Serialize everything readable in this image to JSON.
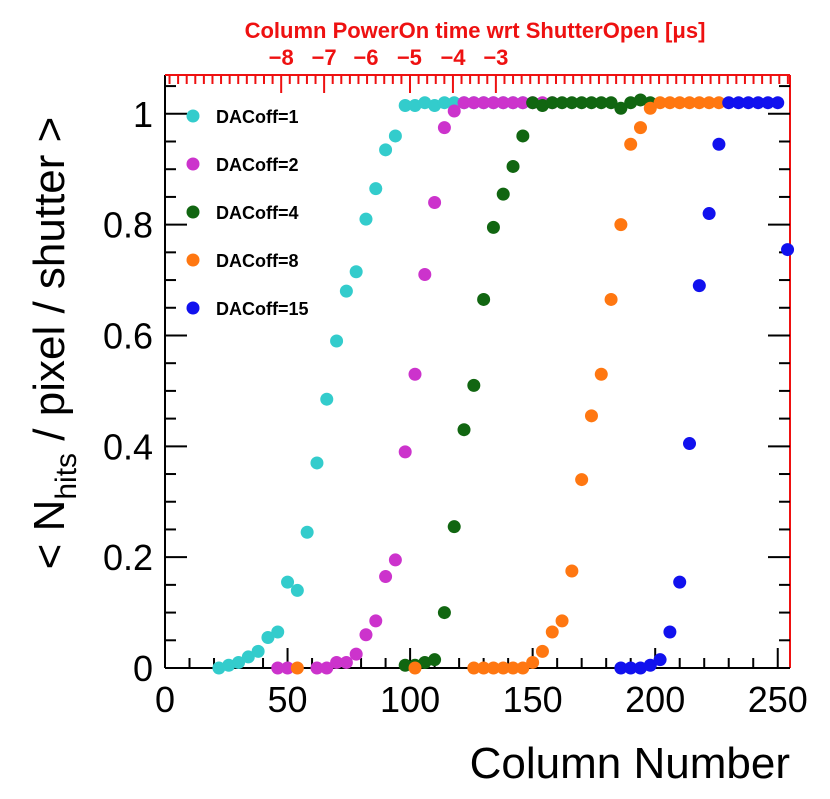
{
  "chart_data": {
    "type": "scatter",
    "xlabel": "Column Number",
    "ylabel_parts": {
      "open": "< N",
      "sub": "hits",
      "rest": " / pixel / shutter >"
    },
    "top_axis_label": "Column PowerOn time wrt ShutterOpen [μs]",
    "xlim": [
      0,
      255
    ],
    "ylim": [
      0,
      1.07
    ],
    "x_ticks": [
      0,
      50,
      100,
      150,
      200,
      250
    ],
    "y_ticks": [
      0,
      0.2,
      0.4,
      0.6,
      0.8,
      1
    ],
    "y_tick_labels": [
      "0",
      "0.2",
      "0.4",
      "0.6",
      "0.8",
      "1"
    ],
    "top_ticks": [
      {
        "label": "−8",
        "x": 47.4
      },
      {
        "label": "−7",
        "x": 64.9
      },
      {
        "label": "−6",
        "x": 82.0
      },
      {
        "label": "−5",
        "x": 99.7
      },
      {
        "label": "−4",
        "x": 117.5
      },
      {
        "label": "−3",
        "x": 135.0
      }
    ],
    "colors": {
      "axis": "#000000",
      "top_axis": "#ee1111"
    },
    "series": [
      {
        "name": "DACoff=1",
        "color": "#33cccc",
        "points": [
          [
            22,
            0.0
          ],
          [
            26,
            0.005
          ],
          [
            30,
            0.01
          ],
          [
            34,
            0.02
          ],
          [
            38,
            0.03
          ],
          [
            42,
            0.055
          ],
          [
            46,
            0.065
          ],
          [
            50,
            0.155
          ],
          [
            54,
            0.14
          ],
          [
            58,
            0.245
          ],
          [
            62,
            0.37
          ],
          [
            66,
            0.485
          ],
          [
            70,
            0.59
          ],
          [
            74,
            0.68
          ],
          [
            78,
            0.715
          ],
          [
            82,
            0.81
          ],
          [
            86,
            0.865
          ],
          [
            90,
            0.935
          ],
          [
            94,
            0.96
          ],
          [
            98,
            1.015
          ],
          [
            102,
            1.015
          ],
          [
            106,
            1.02
          ],
          [
            110,
            1.015
          ],
          [
            114,
            1.02
          ],
          [
            118,
            1.02
          ],
          [
            122,
            1.02
          ],
          [
            126,
            1.02
          ],
          [
            130,
            1.02
          ],
          [
            134,
            1.02
          ],
          [
            138,
            1.02
          ],
          [
            142,
            1.02
          ],
          [
            146,
            1.02
          ]
        ]
      },
      {
        "name": "DACoff=2",
        "color": "#cc33cc",
        "points": [
          [
            46,
            0.0
          ],
          [
            50,
            0.0
          ],
          [
            62,
            0.0
          ],
          [
            66,
            0.0
          ],
          [
            70,
            0.01
          ],
          [
            74,
            0.01
          ],
          [
            78,
            0.025
          ],
          [
            82,
            0.06
          ],
          [
            86,
            0.085
          ],
          [
            90,
            0.165
          ],
          [
            94,
            0.195
          ],
          [
            98,
            0.39
          ],
          [
            102,
            0.53
          ],
          [
            106,
            0.71
          ],
          [
            110,
            0.84
          ],
          [
            114,
            0.975
          ],
          [
            118,
            1.005
          ],
          [
            122,
            1.02
          ],
          [
            126,
            1.02
          ],
          [
            130,
            1.02
          ],
          [
            134,
            1.02
          ],
          [
            138,
            1.02
          ],
          [
            142,
            1.02
          ],
          [
            146,
            1.02
          ],
          [
            150,
            1.02
          ],
          [
            154,
            1.02
          ],
          [
            158,
            1.02
          ]
        ]
      },
      {
        "name": "DACoff=4",
        "color": "#116611",
        "points": [
          [
            98,
            0.005
          ],
          [
            102,
            0.005
          ],
          [
            106,
            0.01
          ],
          [
            110,
            0.015
          ],
          [
            114,
            0.1
          ],
          [
            118,
            0.255
          ],
          [
            122,
            0.43
          ],
          [
            126,
            0.51
          ],
          [
            130,
            0.665
          ],
          [
            134,
            0.795
          ],
          [
            138,
            0.855
          ],
          [
            142,
            0.905
          ],
          [
            146,
            0.96
          ],
          [
            150,
            1.02
          ],
          [
            154,
            1.015
          ],
          [
            158,
            1.02
          ],
          [
            162,
            1.02
          ],
          [
            166,
            1.02
          ],
          [
            170,
            1.02
          ],
          [
            174,
            1.02
          ],
          [
            178,
            1.02
          ],
          [
            182,
            1.02
          ],
          [
            186,
            1.01
          ],
          [
            190,
            1.02
          ],
          [
            194,
            1.025
          ],
          [
            198,
            1.02
          ]
        ]
      },
      {
        "name": "DACoff=8",
        "color": "#ff7711",
        "points": [
          [
            54,
            0.0
          ],
          [
            102,
            0.0
          ],
          [
            126,
            0.0
          ],
          [
            130,
            0.0
          ],
          [
            134,
            0.0
          ],
          [
            138,
            0.0
          ],
          [
            142,
            0.0
          ],
          [
            146,
            0.0
          ],
          [
            150,
            0.01
          ],
          [
            154,
            0.03
          ],
          [
            158,
            0.065
          ],
          [
            162,
            0.085
          ],
          [
            166,
            0.175
          ],
          [
            170,
            0.34
          ],
          [
            174,
            0.455
          ],
          [
            178,
            0.53
          ],
          [
            182,
            0.665
          ],
          [
            186,
            0.8
          ],
          [
            190,
            0.945
          ],
          [
            194,
            0.975
          ],
          [
            198,
            1.01
          ],
          [
            202,
            1.02
          ],
          [
            206,
            1.02
          ],
          [
            210,
            1.02
          ],
          [
            214,
            1.02
          ],
          [
            218,
            1.02
          ],
          [
            222,
            1.02
          ],
          [
            226,
            1.02
          ]
        ]
      },
      {
        "name": "DACoff=15",
        "color": "#1111ee",
        "points": [
          [
            186,
            0.0
          ],
          [
            190,
            0.0
          ],
          [
            194,
            0.0
          ],
          [
            198,
            0.005
          ],
          [
            202,
            0.015
          ],
          [
            206,
            0.065
          ],
          [
            210,
            0.155
          ],
          [
            214,
            0.405
          ],
          [
            218,
            0.69
          ],
          [
            222,
            0.82
          ],
          [
            226,
            0.945
          ],
          [
            230,
            1.02
          ],
          [
            234,
            1.02
          ],
          [
            238,
            1.02
          ],
          [
            242,
            1.02
          ],
          [
            246,
            1.02
          ],
          [
            250,
            1.02
          ],
          [
            254,
            0.755
          ]
        ]
      }
    ],
    "legend": {
      "placement": "top-left"
    }
  }
}
